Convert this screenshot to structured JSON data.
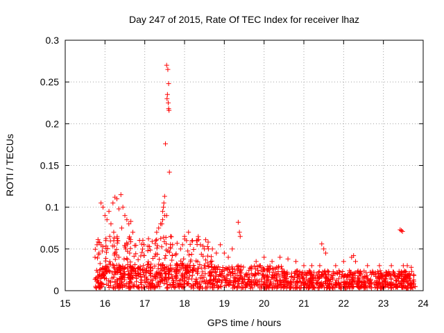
{
  "chart_data": {
    "type": "scatter",
    "title": "Day 247 of 2015, Rate Of TEC Index for receiver lhaz",
    "xlabel": "GPS time / hours",
    "ylabel": "ROTI / TECUs",
    "xlim": [
      15,
      24
    ],
    "ylim": [
      0,
      0.3
    ],
    "xticks": [
      "15",
      "16",
      "17",
      "18",
      "19",
      "20",
      "21",
      "22",
      "23",
      "24"
    ],
    "yticks": [
      "0",
      "0.05",
      "0.1",
      "0.15",
      "0.2",
      "0.25",
      "0.3"
    ],
    "grid": true,
    "marker": "+",
    "color": "#ff0000",
    "series": [
      {
        "name": "ROTI",
        "x": [
          17.55,
          17.58,
          17.6,
          17.57,
          17.56,
          17.59,
          17.6,
          17.61,
          17.52,
          17.62,
          17.5,
          17.48,
          17.47,
          17.45,
          17.43,
          17.55,
          17.65,
          17.7,
          15.9,
          15.95,
          16.0,
          16.05,
          16.1,
          16.15,
          16.2,
          16.25,
          16.3,
          16.35,
          16.4,
          16.45,
          16.5,
          16.55,
          16.6,
          16.65,
          16.7,
          15.8,
          15.85,
          15.75,
          16.02,
          16.12,
          16.22,
          16.32,
          16.42,
          16.52,
          16.62,
          17.3,
          17.35,
          17.4,
          17.45,
          17.5,
          17.9,
          17.95,
          18.0,
          18.05,
          18.1,
          18.2,
          18.3,
          18.4,
          18.5,
          18.6,
          18.7,
          18.8,
          18.9,
          19.0,
          19.1,
          19.2,
          19.35,
          19.38,
          19.4,
          19.8,
          20.0,
          20.2,
          20.4,
          20.6,
          20.8,
          21.0,
          21.2,
          21.4,
          21.45,
          21.5,
          21.55,
          21.8,
          22.0,
          22.2,
          22.25,
          22.3,
          22.6,
          22.9,
          23.2,
          23.42,
          23.45,
          23.48,
          23.5,
          23.6,
          23.7
        ],
        "y": [
          0.27,
          0.265,
          0.248,
          0.235,
          0.23,
          0.225,
          0.218,
          0.216,
          0.176,
          0.142,
          0.113,
          0.105,
          0.1,
          0.095,
          0.08,
          0.09,
          0.065,
          0.055,
          0.105,
          0.1,
          0.09,
          0.085,
          0.095,
          0.08,
          0.105,
          0.112,
          0.11,
          0.098,
          0.115,
          0.1,
          0.09,
          0.085,
          0.08,
          0.083,
          0.07,
          0.055,
          0.045,
          0.04,
          0.06,
          0.065,
          0.07,
          0.06,
          0.075,
          0.05,
          0.045,
          0.07,
          0.075,
          0.08,
          0.085,
          0.09,
          0.05,
          0.055,
          0.065,
          0.06,
          0.07,
          0.06,
          0.06,
          0.055,
          0.05,
          0.05,
          0.05,
          0.045,
          0.055,
          0.045,
          0.04,
          0.05,
          0.082,
          0.07,
          0.065,
          0.035,
          0.04,
          0.035,
          0.04,
          0.038,
          0.035,
          0.03,
          0.03,
          0.03,
          0.056,
          0.05,
          0.045,
          0.03,
          0.035,
          0.04,
          0.042,
          0.035,
          0.03,
          0.03,
          0.03,
          0.073,
          0.072,
          0.071,
          0.03,
          0.03,
          0.028
        ]
      }
    ],
    "dense_band": {
      "x_range": [
        15.75,
        23.8
      ],
      "y_range": [
        0.003,
        0.03
      ],
      "note": "dense cluster of points between about 0.003 and 0.03 across the full time span"
    }
  }
}
